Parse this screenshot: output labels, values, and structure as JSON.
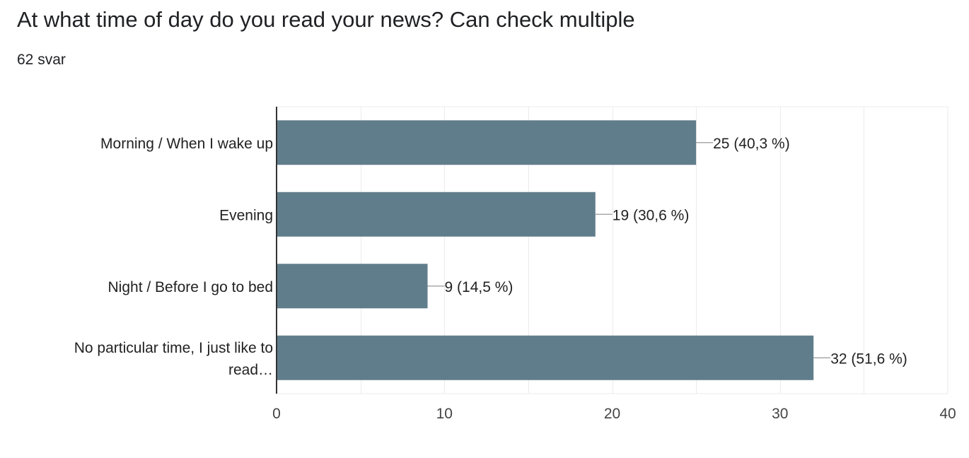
{
  "header": {
    "title": "At what time of day do you read your news? Can check multiple",
    "response_count": "62 svar"
  },
  "chart_data": {
    "type": "bar",
    "orientation": "horizontal",
    "categories": [
      [
        "Morning / When I wake up"
      ],
      [
        "Evening"
      ],
      [
        "Night / Before I go to bed"
      ],
      [
        "No particular time, I just like to",
        "read…"
      ]
    ],
    "values": [
      25,
      19,
      9,
      32
    ],
    "value_labels": [
      "25 (40,3 %)",
      "19 (30,6 %)",
      "9 (14,5 %)",
      "32 (51,6 %)"
    ],
    "xlim": [
      0,
      40
    ],
    "x_ticks": [
      0,
      10,
      20,
      30,
      40
    ],
    "grid": true,
    "bar_color": "#607d8b",
    "gridline_color": "#ebebeb",
    "axis_color": "#333333"
  }
}
